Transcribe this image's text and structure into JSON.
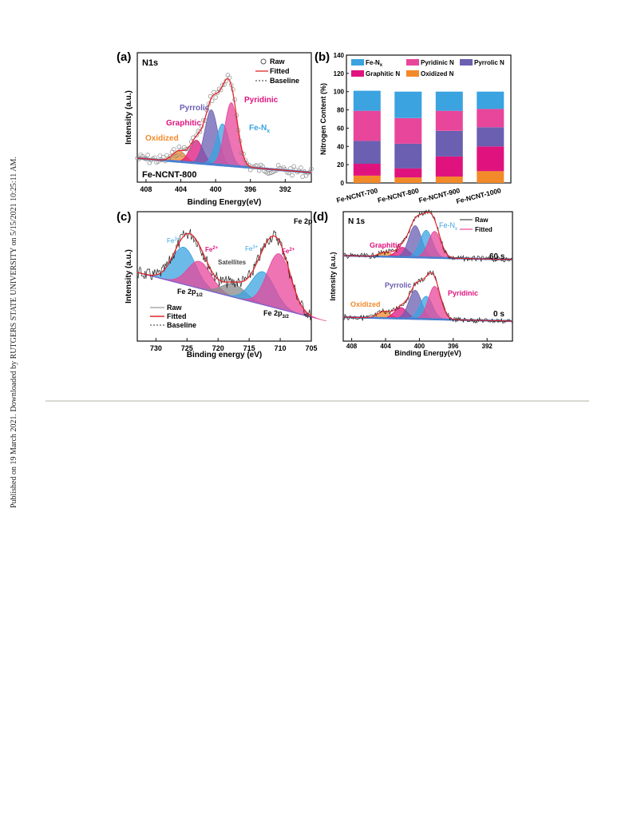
{
  "sidebar": {
    "text": "Published on 19 March 2021. Downloaded by RUTGERS STATE UNIVERSITY on 5/15/2021 10:25:11 AM."
  },
  "colors": {
    "fe_nx": "#3aa3e0",
    "pyridinic": "#e8469a",
    "pyrrolic": "#6a5fb1",
    "graphitic": "#e0137e",
    "oxidized": "#f28a2a",
    "fitted": "#e0262a",
    "baseline": "#4a7fd0",
    "satellite": "#8a8a8a"
  },
  "chart_data": [
    {
      "panel": "(a)",
      "type": "line",
      "title": "N1s",
      "sample": "Fe-NCNT-800",
      "xlabel": "Binding Energy(eV)",
      "ylabel": "Intensity (a.u.)",
      "xlim": [
        409,
        389
      ],
      "xticks": [
        "408",
        "404",
        "400",
        "396",
        "392"
      ],
      "legend": [
        "Raw",
        "Fitted",
        "Baseline"
      ],
      "legend_position": "top-right",
      "peaks": [
        {
          "name": "Oxidized",
          "center": 404.2,
          "height": 0.12
        },
        {
          "name": "Graphitic",
          "center": 402.2,
          "height": 0.26
        },
        {
          "name": "Pyrrolic",
          "center": 400.5,
          "height": 0.62
        },
        {
          "name": "Fe-Nx",
          "center": 399.2,
          "height": 0.47
        },
        {
          "name": "Pyridinic",
          "center": 398.2,
          "height": 0.72
        }
      ],
      "labels": [
        "Pyrrolic",
        "Pyridinic",
        "Graphitic",
        "Fe-N",
        "x",
        "Oxidized"
      ]
    },
    {
      "panel": "(b)",
      "type": "bar",
      "stacked": true,
      "ylabel": "Nitrogen Content (%)",
      "ylim": [
        0,
        140
      ],
      "yticks": [
        "0",
        "20",
        "40",
        "60",
        "80",
        "100",
        "120",
        "140"
      ],
      "categories": [
        "Fe-NCNT-700",
        "Fe-NCNT-800",
        "Fe-NCNT-900",
        "Fe-NCNT-1000"
      ],
      "legend_position": "top",
      "series": [
        {
          "name": "Oxidized N",
          "values": [
            8,
            6,
            7,
            13
          ]
        },
        {
          "name": "Graphitic N",
          "values": [
            13,
            10,
            22,
            27
          ]
        },
        {
          "name": "Pyrrolic N",
          "values": [
            25,
            27,
            28,
            21
          ]
        },
        {
          "name": "Pyridinic N",
          "values": [
            33,
            28,
            22,
            20
          ]
        },
        {
          "name": "Fe-Nx",
          "values": [
            22,
            29,
            21,
            19
          ]
        }
      ],
      "legend_labels": [
        "Fe-N",
        "x",
        "Pyridinic N",
        "Pyrrolic N",
        "Graphitic N",
        "Oxidized N"
      ]
    },
    {
      "panel": "(c)",
      "type": "line",
      "title": "Fe 2p",
      "xlabel": "Binding energy (eV)",
      "ylabel": "Intensity (a.u.)",
      "xlim": [
        733,
        705
      ],
      "xticks": [
        "730",
        "725",
        "720",
        "715",
        "710",
        "705"
      ],
      "legend": [
        "Raw",
        "Fitted",
        "Baseline"
      ],
      "legend_position": "bottom-left",
      "peaks": [
        {
          "name": "Fe3+ (2p1/2)",
          "center": 725.5,
          "height": 0.62
        },
        {
          "name": "Fe2+ (2p1/2)",
          "center": 723.0,
          "height": 0.45
        },
        {
          "name": "Satellites",
          "center": 717.5,
          "height": 0.22
        },
        {
          "name": "Fe3+ (2p3/2)",
          "center": 712.8,
          "height": 0.55
        },
        {
          "name": "Fe2+ (2p3/2)",
          "center": 710.2,
          "height": 0.92
        }
      ],
      "labels": [
        "Fe",
        "3+",
        "Fe",
        "2+",
        "Satellites",
        "Fe",
        "3+",
        "Fe",
        "2+",
        "Fe 2p",
        "1/2",
        "Fe 2p",
        "3/2"
      ]
    },
    {
      "panel": "(d)",
      "type": "line",
      "title": "N 1s",
      "xlabel": "Binding Energy(eV)",
      "ylabel": "Intensity (a.u.)",
      "xlim": [
        409,
        389
      ],
      "xticks": [
        "408",
        "404",
        "400",
        "396",
        "392"
      ],
      "legend": [
        "Raw",
        "Fitted"
      ],
      "legend_position": "top-right",
      "series": [
        {
          "name": "60 s",
          "peaks": [
            {
              "name": "Oxidized",
              "center": 404.0,
              "height": 0.1
            },
            {
              "name": "Graphitic",
              "center": 402.0,
              "height": 0.22
            },
            {
              "name": "Pyrrolic",
              "center": 400.5,
              "height": 0.72
            },
            {
              "name": "Fe-Nx",
              "center": 399.2,
              "height": 0.62
            },
            {
              "name": "Pyridinic",
              "center": 398.2,
              "height": 0.6
            }
          ]
        },
        {
          "name": "0 s",
          "peaks": [
            {
              "name": "Oxidized",
              "center": 404.2,
              "height": 0.15
            },
            {
              "name": "Graphitic",
              "center": 402.2,
              "height": 0.25
            },
            {
              "name": "Pyrrolic",
              "center": 400.5,
              "height": 0.65
            },
            {
              "name": "Fe-Nx",
              "center": 399.2,
              "height": 0.52
            },
            {
              "name": "Pyridinic",
              "center": 398.2,
              "height": 0.75
            }
          ]
        }
      ],
      "labels": [
        "Graphitic",
        "Fe-N",
        "x",
        "Pyrrolic",
        "Pyridinic",
        "Oxidized",
        "60 s",
        "0 s"
      ]
    }
  ]
}
